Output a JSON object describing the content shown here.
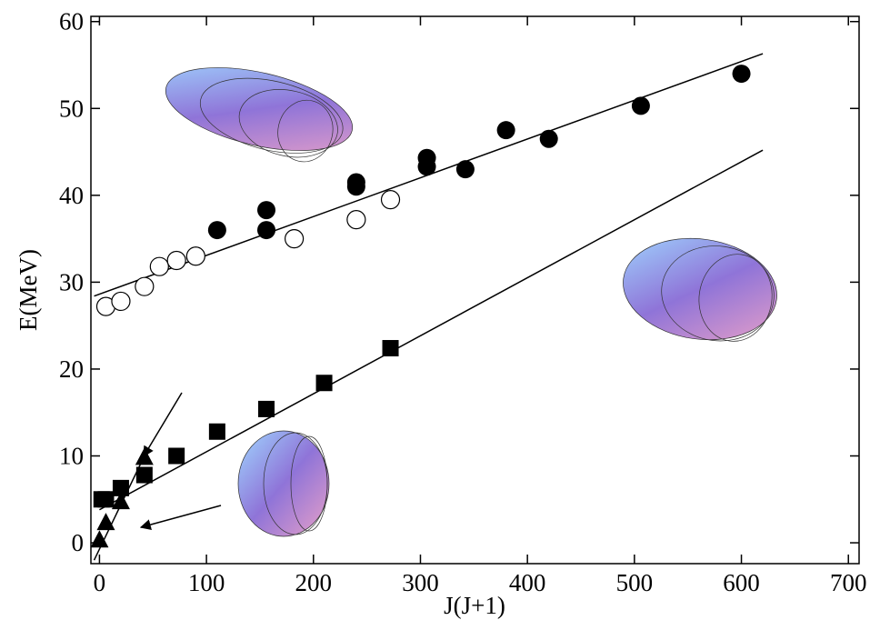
{
  "chart_data": {
    "type": "scatter",
    "xlabel": "J(J+1)",
    "ylabel": "E(MeV)",
    "xlim": [
      -8,
      710
    ],
    "ylim": [
      -2.4,
      60.6
    ],
    "xticks": [
      0,
      100,
      200,
      300,
      400,
      500,
      600,
      700
    ],
    "yticks": [
      0,
      10,
      20,
      30,
      40,
      50,
      60
    ],
    "series": [
      {
        "marker": "filled-circle",
        "color": "#000000",
        "x": [
          110,
          156,
          156,
          240,
          240,
          306,
          306,
          342,
          380,
          420,
          506,
          600
        ],
        "values": [
          36,
          38.3,
          36,
          41.5,
          41,
          44.3,
          43.3,
          43,
          47.5,
          46.5,
          50.3,
          54
        ]
      },
      {
        "marker": "open-circle",
        "color": "#000000",
        "x": [
          6,
          20,
          42,
          56,
          72,
          90,
          182,
          240,
          272
        ],
        "values": [
          27.2,
          27.8,
          29.5,
          31.8,
          32.5,
          33,
          35,
          37.2,
          39.5
        ]
      },
      {
        "marker": "square",
        "color": "#000000",
        "x": [
          2,
          6,
          20,
          42,
          72,
          110,
          156,
          210,
          272
        ],
        "values": [
          5,
          5,
          6.3,
          7.8,
          10,
          12.8,
          15.4,
          18.4,
          22.4
        ]
      },
      {
        "marker": "triangle",
        "color": "#000000",
        "x": [
          0,
          6,
          20,
          42
        ],
        "values": [
          0.3,
          2.3,
          4.7,
          9.8
        ]
      }
    ],
    "lines": [
      {
        "color": "#000000",
        "x": [
          -5,
          620
        ],
        "values": [
          28.4,
          56.3
        ]
      },
      {
        "color": "#000000",
        "x": [
          0,
          620
        ],
        "values": [
          3.8,
          45.2
        ]
      },
      {
        "color": "#000000",
        "x": [
          -5,
          42
        ],
        "values": [
          -2,
          10
        ]
      }
    ]
  }
}
